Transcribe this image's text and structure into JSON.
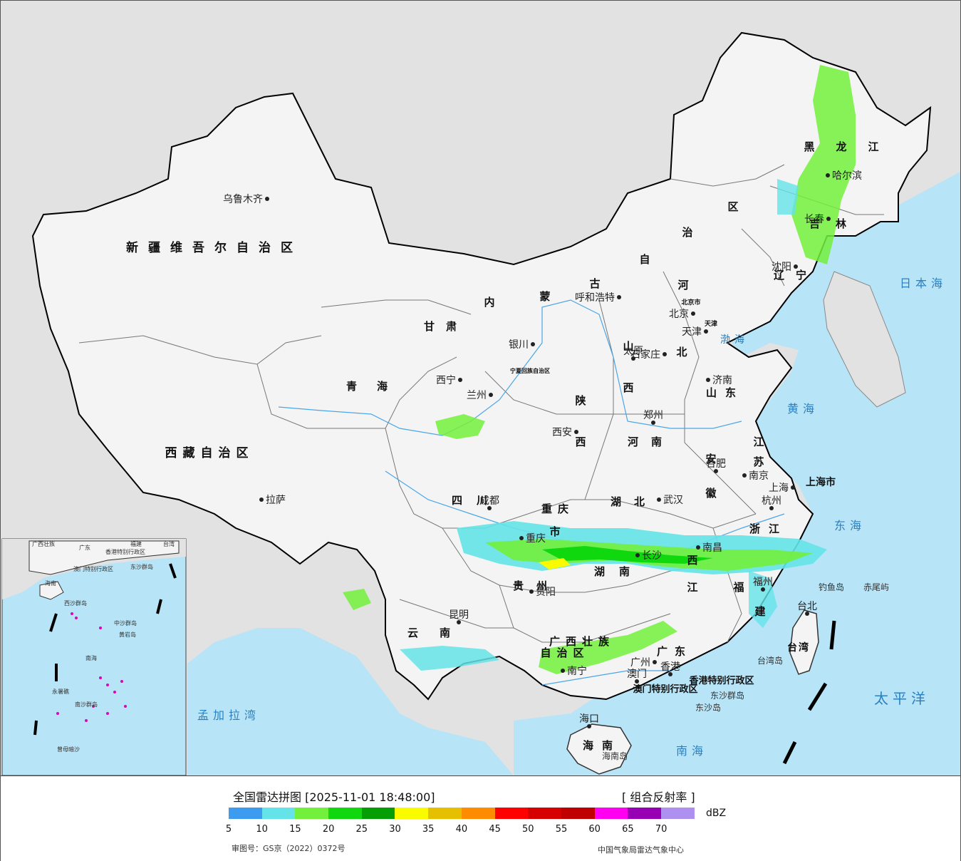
{
  "map": {
    "ocean_color": "#b8e4f7",
    "land_color": "#f2f2f2",
    "foreign_land_color": "#e2e2e2",
    "provinces": [
      {
        "name": "新疆维吾尔自治区"
      },
      {
        "name": "西藏自治区"
      },
      {
        "name": "青海"
      },
      {
        "name": "甘肃"
      },
      {
        "name": "内蒙古自治区"
      },
      {
        "name": "黑龙江"
      },
      {
        "name": "吉林"
      },
      {
        "name": "辽宁"
      },
      {
        "name": "河北"
      },
      {
        "name": "山西"
      },
      {
        "name": "山东"
      },
      {
        "name": "陕西"
      },
      {
        "name": "河南"
      },
      {
        "name": "江苏"
      },
      {
        "name": "安徽"
      },
      {
        "name": "四川"
      },
      {
        "name": "湖北"
      },
      {
        "name": "湖南"
      },
      {
        "name": "江西"
      },
      {
        "name": "浙江"
      },
      {
        "name": "福建"
      },
      {
        "name": "贵州"
      },
      {
        "name": "云南"
      },
      {
        "name": "广西壮族自治区"
      },
      {
        "name": "广东"
      },
      {
        "name": "海南"
      },
      {
        "name": "台湾"
      },
      {
        "name": "重庆市"
      },
      {
        "name": "上海市"
      },
      {
        "name": "宁夏回族自治区"
      },
      {
        "name": "天津"
      },
      {
        "name": "北京市"
      },
      {
        "name": "香港特别行政区"
      },
      {
        "name": "澳门特别行政区"
      }
    ],
    "cities": [
      {
        "name": "乌鲁木齐"
      },
      {
        "name": "拉萨"
      },
      {
        "name": "西宁"
      },
      {
        "name": "兰州"
      },
      {
        "name": "银川"
      },
      {
        "name": "呼和浩特"
      },
      {
        "name": "哈尔滨"
      },
      {
        "name": "长春"
      },
      {
        "name": "沈阳"
      },
      {
        "name": "北京"
      },
      {
        "name": "天津"
      },
      {
        "name": "石家庄"
      },
      {
        "name": "太原"
      },
      {
        "name": "济南"
      },
      {
        "name": "郑州"
      },
      {
        "name": "西安"
      },
      {
        "name": "合肥"
      },
      {
        "name": "南京"
      },
      {
        "name": "上海"
      },
      {
        "name": "杭州"
      },
      {
        "name": "武汉"
      },
      {
        "name": "成都"
      },
      {
        "name": "重庆"
      },
      {
        "name": "长沙"
      },
      {
        "name": "南昌"
      },
      {
        "name": "福州"
      },
      {
        "name": "贵阳"
      },
      {
        "name": "昆明"
      },
      {
        "name": "南宁"
      },
      {
        "name": "广州"
      },
      {
        "name": "澳门"
      },
      {
        "name": "香港"
      },
      {
        "name": "海口"
      },
      {
        "name": "台北"
      }
    ],
    "seas": [
      {
        "name": "日本海"
      },
      {
        "name": "渤海"
      },
      {
        "name": "黄海"
      },
      {
        "name": "东海"
      },
      {
        "name": "南海"
      },
      {
        "name": "太平洋"
      },
      {
        "name": "孟加拉湾"
      }
    ],
    "islands": [
      {
        "name": "钓鱼岛"
      },
      {
        "name": "赤尾屿"
      },
      {
        "name": "台湾岛"
      },
      {
        "name": "东沙群岛"
      },
      {
        "name": "东沙岛"
      },
      {
        "name": "海南岛"
      }
    ],
    "inset": {
      "labels": [
        {
          "name": "广西壮族"
        },
        {
          "name": "广东"
        },
        {
          "name": "福建"
        },
        {
          "name": "台湾"
        },
        {
          "name": "香港特别行政区"
        },
        {
          "name": "澳门特别行政区"
        },
        {
          "name": "东沙群岛"
        },
        {
          "name": "海南"
        },
        {
          "name": "西沙群岛"
        },
        {
          "name": "中沙群岛"
        },
        {
          "name": "黄岩岛"
        },
        {
          "name": "南海"
        },
        {
          "name": "南沙群岛"
        },
        {
          "name": "永暑礁"
        },
        {
          "name": "曾母暗沙"
        }
      ]
    }
  },
  "legend": {
    "title": "全国雷达拼图 [2025-11-01 18:48:00]",
    "product": "[ 组合反射率 ]",
    "unit": "dBZ",
    "colors": [
      "#3d9bf0",
      "#64e3e8",
      "#73f03c",
      "#0fd80f",
      "#059e05",
      "#fbfb00",
      "#e5c000",
      "#ff8c00",
      "#ff0000",
      "#d70000",
      "#c00000",
      "#ff00f0",
      "#9800b4",
      "#ae90f0"
    ],
    "ticks": [
      "5",
      "10",
      "15",
      "20",
      "25",
      "30",
      "35",
      "40",
      "45",
      "50",
      "55",
      "60",
      "65",
      "70"
    ],
    "approval": "审图号：GS京（2022）0372号",
    "organization": "中国气象局雷达气象中心"
  }
}
